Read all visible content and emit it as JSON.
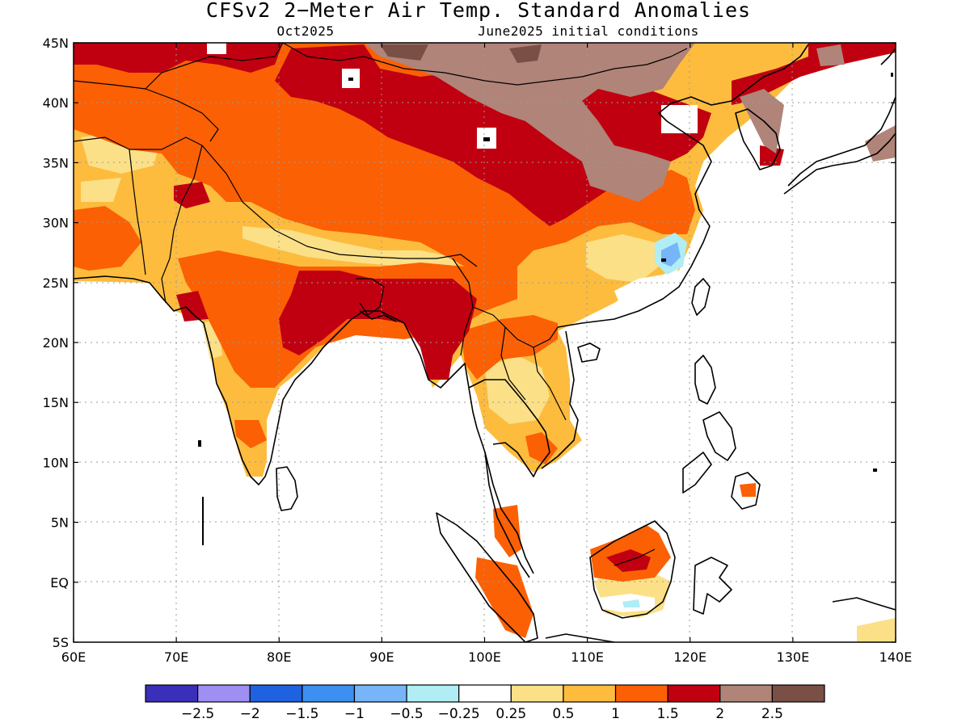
{
  "title": "CFSv2 2−Meter Air Temp. Standard Anomalies",
  "subtitle_left": "Oct2025",
  "subtitle_right": "June2025 initial conditions",
  "map": {
    "lon_range": [
      60,
      140
    ],
    "lat_range": [
      -5,
      45
    ],
    "lat_labels": [
      "45N",
      "40N",
      "35N",
      "30N",
      "25N",
      "20N",
      "15N",
      "10N",
      "5N",
      "EQ",
      "5S"
    ],
    "lon_labels": [
      "60E",
      "70E",
      "80E",
      "90E",
      "100E",
      "110E",
      "120E",
      "130E",
      "140E"
    ]
  },
  "colorbar": {
    "colors": [
      "#3a2fb8",
      "#9f8ff2",
      "#1f62e0",
      "#3d8ff2",
      "#76b5f7",
      "#b0edf5",
      "#ffffff",
      "#fbe088",
      "#fdbc3e",
      "#fb6004",
      "#c00010",
      "#b08478",
      "#7a4f45"
    ],
    "labels": [
      "−2.5",
      "−2",
      "−1.5",
      "−1",
      "−0.5",
      "−0.25",
      "0.25",
      "0.5",
      "1",
      "1.5",
      "2",
      "2.5"
    ]
  }
}
